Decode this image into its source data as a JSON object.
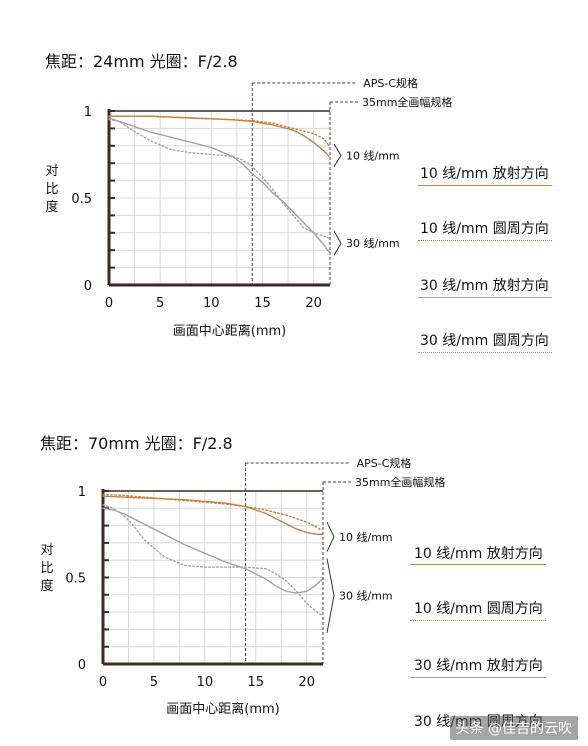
{
  "colors": {
    "orange": "#c8803c",
    "gray": "#a2a2a2",
    "axis": "#3a2a22",
    "grid": "#d8d8d8"
  },
  "chart_data": [
    {
      "type": "line",
      "title": "焦距：24mm  光圈：F/2.8",
      "xlabel": "画面中心距离(mm)",
      "ylabel": "对比度",
      "xlim": [
        0,
        21.6
      ],
      "ylim": [
        0,
        1
      ],
      "xticks": [
        "0",
        "5",
        "10",
        "15",
        "20"
      ],
      "yticks": [
        "0",
        "0.5",
        "1"
      ],
      "grid": true,
      "annotations": {
        "apsc": "APS-C规格",
        "ff": "35mm全画幅规格",
        "low": "10 线/mm",
        "high": "30 线/mm"
      },
      "annotation_x": {
        "apsc": 14,
        "ff": 21.6
      },
      "series": [
        {
          "name": "10 线/mm  放射方向",
          "color": "orange",
          "dash": false,
          "x": [
            0,
            2,
            4,
            6,
            8,
            10,
            12,
            14,
            16,
            18,
            19,
            20,
            21,
            21.5
          ],
          "y": [
            0.97,
            0.97,
            0.97,
            0.965,
            0.96,
            0.955,
            0.95,
            0.94,
            0.92,
            0.89,
            0.86,
            0.82,
            0.77,
            0.74
          ]
        },
        {
          "name": "10 线/mm  圆周方向",
          "color": "orange",
          "dash": true,
          "x": [
            0,
            2,
            4,
            6,
            8,
            10,
            12,
            14,
            16,
            18,
            20,
            21,
            21.5
          ],
          "y": [
            0.97,
            0.97,
            0.97,
            0.965,
            0.96,
            0.955,
            0.95,
            0.945,
            0.93,
            0.9,
            0.87,
            0.84,
            0.8
          ]
        },
        {
          "name": "30 线/mm  放射方向",
          "color": "gray",
          "dash": false,
          "x": [
            0,
            1,
            2,
            4,
            6,
            8,
            10,
            12,
            13,
            14,
            15,
            16,
            17,
            18,
            19,
            20,
            21,
            21.5
          ],
          "y": [
            0.96,
            0.94,
            0.92,
            0.88,
            0.85,
            0.82,
            0.79,
            0.74,
            0.7,
            0.64,
            0.59,
            0.53,
            0.48,
            0.42,
            0.36,
            0.3,
            0.23,
            0.19
          ]
        },
        {
          "name": "30 线/mm  圆周方向",
          "color": "gray",
          "dash": true,
          "x": [
            0,
            1,
            2,
            4,
            6,
            8,
            10,
            12,
            13,
            14,
            15,
            16,
            17,
            18,
            19,
            20,
            21,
            21.5
          ],
          "y": [
            0.95,
            0.94,
            0.9,
            0.83,
            0.78,
            0.76,
            0.75,
            0.74,
            0.72,
            0.68,
            0.62,
            0.55,
            0.47,
            0.4,
            0.33,
            0.3,
            0.28,
            0.27
          ]
        }
      ]
    },
    {
      "type": "line",
      "title": "焦距：70mm  光圈：F/2.8",
      "xlabel": "画面中心距离(mm)",
      "ylabel": "对比度",
      "xlim": [
        0,
        21.6
      ],
      "ylim": [
        0,
        1
      ],
      "xticks": [
        "0",
        "5",
        "10",
        "15",
        "20"
      ],
      "yticks": [
        "0",
        "0.5",
        "1"
      ],
      "grid": true,
      "annotations": {
        "apsc": "APS-C规格",
        "ff": "35mm全画幅规格",
        "low": "10 线/mm",
        "high": "30 线/mm"
      },
      "annotation_x": {
        "apsc": 14,
        "ff": 21.6
      },
      "series": [
        {
          "name": "10 线/mm  放射方向",
          "color": "orange",
          "dash": false,
          "x": [
            0,
            2,
            4,
            6,
            8,
            10,
            12,
            14,
            16,
            17,
            18,
            19,
            20,
            21,
            21.5
          ],
          "y": [
            0.97,
            0.965,
            0.96,
            0.955,
            0.95,
            0.94,
            0.93,
            0.91,
            0.87,
            0.84,
            0.81,
            0.78,
            0.76,
            0.75,
            0.75
          ]
        },
        {
          "name": "10 线/mm  圆周方向",
          "color": "orange",
          "dash": true,
          "x": [
            0,
            2,
            4,
            6,
            8,
            10,
            12,
            14,
            16,
            18,
            20,
            21,
            21.5
          ],
          "y": [
            0.98,
            0.975,
            0.965,
            0.955,
            0.945,
            0.935,
            0.925,
            0.91,
            0.89,
            0.86,
            0.82,
            0.79,
            0.77
          ]
        },
        {
          "name": "30 线/mm  放射方向",
          "color": "gray",
          "dash": false,
          "x": [
            0,
            1,
            2,
            4,
            6,
            8,
            10,
            12,
            14,
            15,
            16,
            17,
            18,
            19,
            20,
            21,
            21.5
          ],
          "y": [
            0.9,
            0.89,
            0.87,
            0.81,
            0.75,
            0.69,
            0.64,
            0.59,
            0.55,
            0.52,
            0.49,
            0.45,
            0.42,
            0.41,
            0.42,
            0.46,
            0.49
          ]
        },
        {
          "name": "30 线/mm  圆周方向",
          "color": "gray",
          "dash": true,
          "x": [
            0,
            1,
            2,
            3,
            4,
            6,
            8,
            10,
            12,
            14,
            16,
            17,
            18,
            19,
            20,
            21,
            21.5
          ],
          "y": [
            0.92,
            0.9,
            0.86,
            0.8,
            0.72,
            0.62,
            0.57,
            0.56,
            0.56,
            0.56,
            0.55,
            0.52,
            0.48,
            0.42,
            0.35,
            0.3,
            0.28
          ]
        }
      ]
    }
  ],
  "watermark": "头条 @佳吉的云吹"
}
